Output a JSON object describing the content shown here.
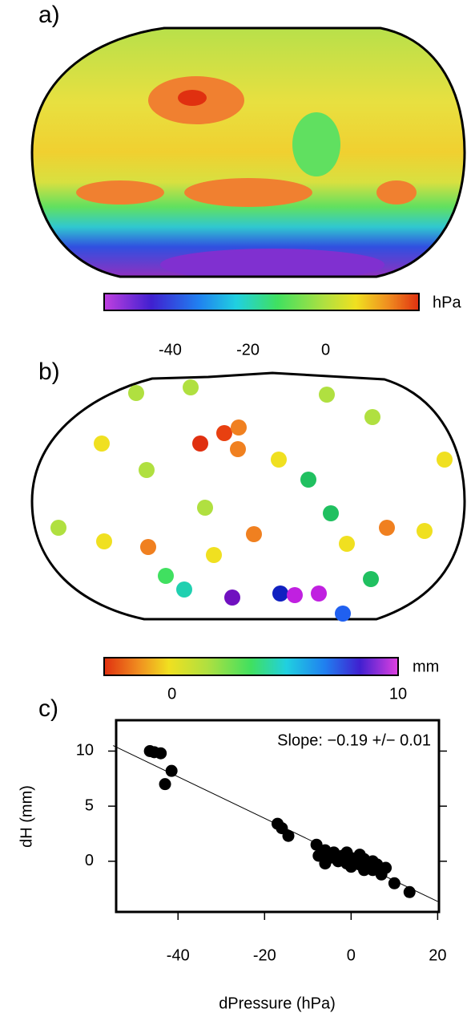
{
  "chart_data": [
    {
      "type": "colorbar",
      "panel_label": "a)",
      "unit": "hPa",
      "xlim": [
        -57,
        24
      ],
      "xticks": [
        -40,
        -20,
        0
      ]
    },
    {
      "type": "colorbar",
      "panel_label": "b)",
      "unit": "mm",
      "xlim": [
        -3,
        10
      ],
      "xticks": [
        0,
        10
      ]
    },
    {
      "type": "scatter",
      "panel_label": "c)",
      "annotation": "Slope: −0.19 +/− 0.01",
      "x_label": "dPressure (hPa)",
      "y_label": "dH (mm)",
      "xlim": [
        -54.3,
        20.3
      ],
      "ylim": [
        -4.6,
        12.8
      ],
      "xticks": [
        -40,
        -20,
        0,
        20
      ],
      "yticks": [
        0,
        5,
        10
      ],
      "color": "#000000",
      "x": [
        -46.5,
        -45.5,
        -44,
        -41.5,
        -43,
        -17,
        -16,
        -14.5,
        -8,
        -7.5,
        -6,
        -5,
        -4,
        -3,
        -2,
        -1,
        0,
        1,
        2,
        3,
        4,
        5,
        6,
        7,
        8,
        10,
        13.5,
        -6,
        2,
        5,
        -1,
        3,
        7,
        0
      ],
      "y": [
        10,
        9.9,
        9.8,
        8.2,
        7,
        3.4,
        3,
        2.3,
        1.5,
        0.5,
        1,
        0.3,
        0.8,
        0,
        0.5,
        -0.2,
        0.3,
        0,
        -0.3,
        0.2,
        -0.5,
        -0.8,
        -0.3,
        -1,
        -0.6,
        -2,
        -2.8,
        -0.2,
        0.6,
        0,
        0.8,
        -0.8,
        -1.2,
        -0.5
      ],
      "fit": {
        "x": [
          -55,
          20
        ],
        "y": [
          10.5,
          -3.65
        ]
      }
    }
  ]
}
